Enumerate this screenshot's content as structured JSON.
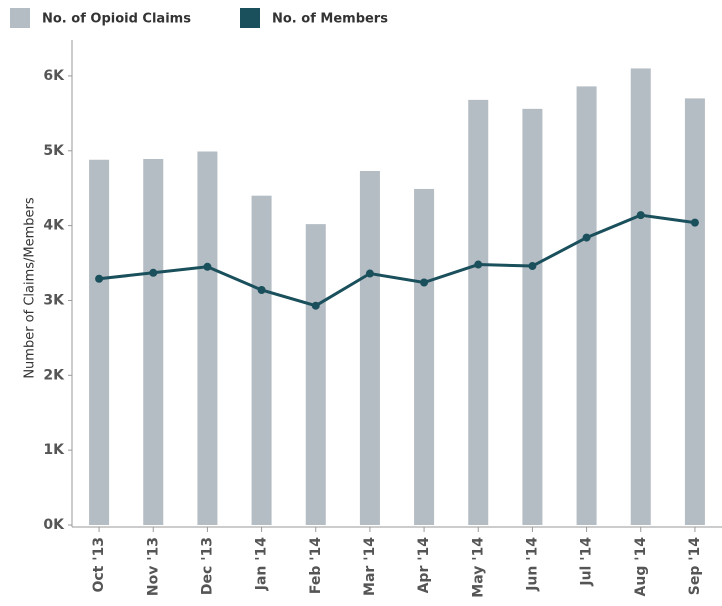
{
  "chart_data": {
    "type": "bar_line",
    "y_label": "Number of Claims/Members",
    "categories": [
      "Oct '13",
      "Nov '13",
      "Dec '13",
      "Jan '14",
      "Feb '14",
      "Mar '14",
      "Apr '14",
      "May '14",
      "Jun '14",
      "Jul '14",
      "Aug '14",
      "Sep '14"
    ],
    "series": [
      {
        "name": "No. of Opioid Claims",
        "color": "#b4bcc4",
        "kind": "bar",
        "values": [
          4880,
          4890,
          4990,
          4400,
          4020,
          4730,
          4490,
          5680,
          5560,
          5860,
          6100,
          5700
        ]
      },
      {
        "name": "No. of Members",
        "color": "#1a4f5c",
        "kind": "line",
        "values": [
          3290,
          3370,
          3450,
          3140,
          2930,
          3360,
          3240,
          3480,
          3460,
          3840,
          4140,
          4040
        ]
      }
    ],
    "ylim": [
      0,
      6480
    ],
    "yticks": [
      {
        "value": 0,
        "label": "0K"
      },
      {
        "value": 1000,
        "label": "1K"
      },
      {
        "value": 2000,
        "label": "2K"
      },
      {
        "value": 3000,
        "label": "3K"
      },
      {
        "value": 4000,
        "label": "4K"
      },
      {
        "value": 5000,
        "label": "5K"
      },
      {
        "value": 6000,
        "label": "6K"
      }
    ]
  }
}
